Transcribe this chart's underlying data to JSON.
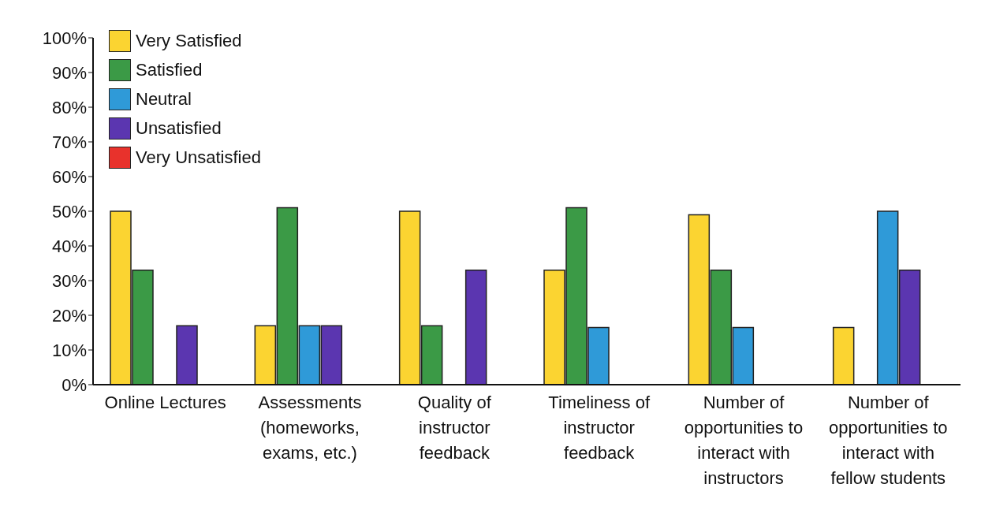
{
  "chart_data": {
    "type": "bar",
    "categories": [
      "Online Lectures",
      "Assessments (homeworks, exams, etc.)",
      "Quality of instructor feedback",
      "Timeliness of instructor feedback",
      "Number of opportunities to interact with instructors",
      "Number of opportunities to interact with fellow students"
    ],
    "series": [
      {
        "name": "Very Satisfied",
        "color": "#fbd431",
        "values": [
          50,
          17,
          50,
          33,
          49,
          16.5
        ]
      },
      {
        "name": "Satisfied",
        "color": "#3b9a46",
        "values": [
          33,
          51,
          17,
          51,
          33,
          0
        ]
      },
      {
        "name": "Neutral",
        "color": "#2f9ad8",
        "values": [
          0,
          17,
          0,
          16.5,
          16.5,
          50
        ]
      },
      {
        "name": "Unsatisfied",
        "color": "#5b36b0",
        "values": [
          17,
          17,
          33,
          0,
          0,
          33
        ]
      },
      {
        "name": "Very Unsatisfied",
        "color": "#e8322c",
        "values": [
          0,
          0,
          0,
          0,
          0,
          0
        ]
      }
    ],
    "ylim": [
      0,
      100
    ],
    "yticks": [
      {
        "value": 0,
        "label": "0%"
      },
      {
        "value": 10,
        "label": "10%"
      },
      {
        "value": 20,
        "label": "20%"
      },
      {
        "value": 30,
        "label": "30%"
      },
      {
        "value": 40,
        "label": "40%"
      },
      {
        "value": 50,
        "label": "50%"
      },
      {
        "value": 60,
        "label": "60%"
      },
      {
        "value": 70,
        "label": "70%"
      },
      {
        "value": 80,
        "label": "80%"
      },
      {
        "value": 90,
        "label": "90%"
      },
      {
        "value": 100,
        "label": "100%"
      }
    ],
    "grid": false,
    "legend": "top left"
  }
}
